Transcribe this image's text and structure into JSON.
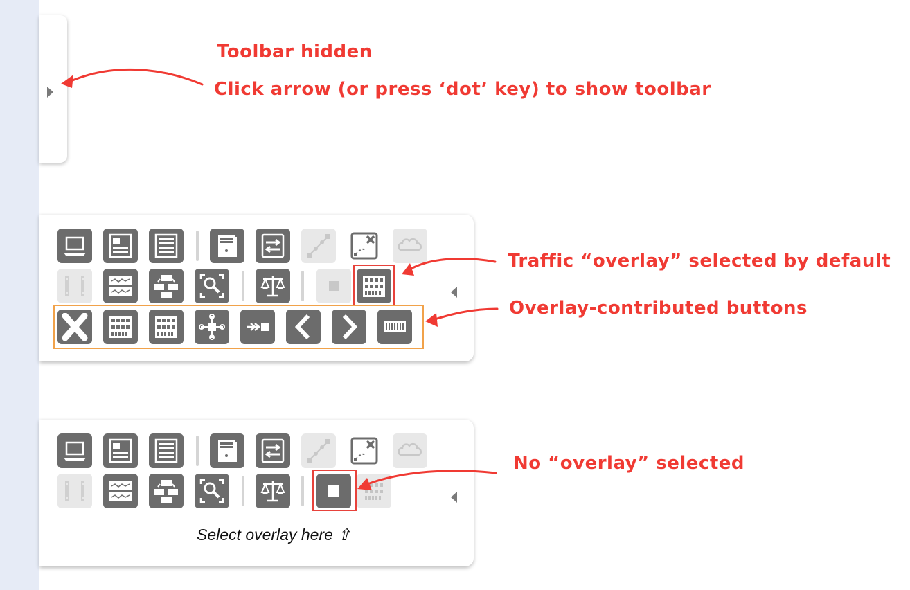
{
  "annotations": {
    "toolbar_hidden": "Toolbar hidden",
    "click_arrow": "Click arrow (or press ‘dot’ key) to show toolbar",
    "traffic_selected": "Traffic “overlay” selected by default",
    "overlay_buttons": "Overlay-contributed buttons",
    "no_overlay": "No “overlay” selected"
  },
  "toolbar_collapsed": {
    "toggle_icon": "triangle-right-icon"
  },
  "toolbar_traffic": {
    "row1": [
      "instances-icon",
      "summary-icon",
      "details-icon",
      "device-icon",
      "ports-icon",
      "path-icon",
      "no-path-icon",
      "cloud-icon"
    ],
    "row2": [
      "film-strip-icon",
      "sprites-icon",
      "map-icon",
      "zoom-icon",
      "balance-icon",
      "no-overlay-icon",
      "traffic-overlay-icon"
    ],
    "row3": [
      "clear-icon",
      "all-traffic-icon",
      "port-traffic-icon",
      "node-icon",
      "relation-icon",
      "previous-icon",
      "next-icon",
      "links-traffic-icon"
    ],
    "selected_overlay": "traffic-overlay-icon",
    "collapse_icon": "triangle-left-icon"
  },
  "toolbar_no_overlay": {
    "selected_overlay": "no-overlay-icon",
    "hint": "Select overlay here ⇧",
    "collapse_icon": "triangle-left-icon"
  },
  "colors": {
    "annotation": "#f03a33",
    "button": "#6c6c6c",
    "button_dim": "#e8e8e8",
    "orange": "#f1a24a",
    "strip": "#e6ebf6"
  }
}
